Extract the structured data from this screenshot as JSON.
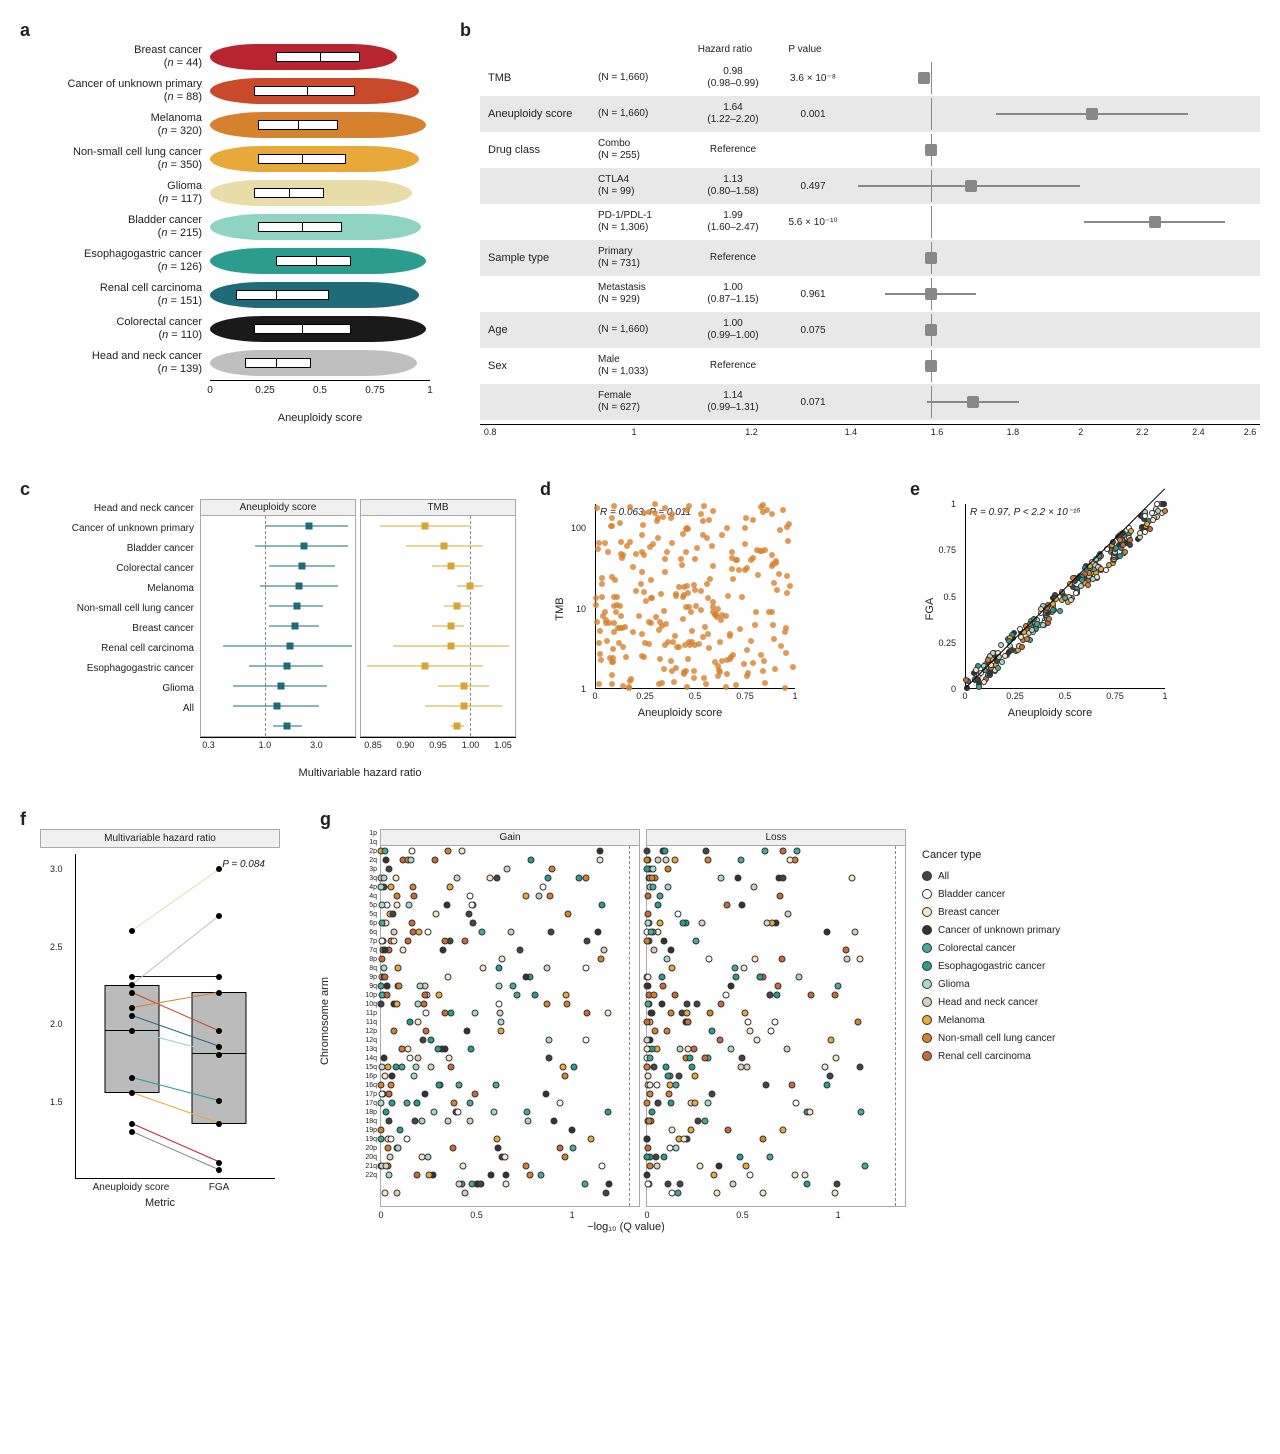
{
  "panel_a": {
    "label": "a",
    "x_axis_title": "Aneuploidy score",
    "x_ticks": [
      0,
      0.25,
      0.5,
      0.75,
      1.0
    ],
    "cancers": [
      {
        "name": "Breast cancer",
        "n": 44,
        "color": "#b82530",
        "q1": 0.3,
        "med": 0.5,
        "q3": 0.68,
        "spread": 0.85
      },
      {
        "name": "Cancer of unknown primary",
        "n": 88,
        "color": "#c94a2a",
        "q1": 0.2,
        "med": 0.44,
        "q3": 0.66,
        "spread": 0.95
      },
      {
        "name": "Melanoma",
        "n": 320,
        "color": "#d6812e",
        "q1": 0.22,
        "med": 0.4,
        "q3": 0.58,
        "spread": 0.98
      },
      {
        "name": "Non-small cell lung cancer",
        "n": 350,
        "color": "#e8a93a",
        "q1": 0.22,
        "med": 0.42,
        "q3": 0.62,
        "spread": 0.95
      },
      {
        "name": "Glioma",
        "n": 117,
        "color": "#e8dca8",
        "q1": 0.2,
        "med": 0.36,
        "q3": 0.52,
        "spread": 0.92
      },
      {
        "name": "Bladder cancer",
        "n": 215,
        "color": "#8fd4c2",
        "q1": 0.22,
        "med": 0.42,
        "q3": 0.6,
        "spread": 0.96
      },
      {
        "name": "Esophagogastric cancer",
        "n": 126,
        "color": "#2a9d8f",
        "q1": 0.3,
        "med": 0.48,
        "q3": 0.64,
        "spread": 0.98
      },
      {
        "name": "Renal cell carcinoma",
        "n": 151,
        "color": "#1f6b7a",
        "q1": 0.12,
        "med": 0.3,
        "q3": 0.54,
        "spread": 0.95
      },
      {
        "name": "Colorectal cancer",
        "n": 110,
        "color": "#1a1a1a",
        "q1": 0.2,
        "med": 0.42,
        "q3": 0.64,
        "spread": 0.98
      },
      {
        "name": "Head and neck cancer",
        "n": 139,
        "color": "#bfbfbf",
        "q1": 0.16,
        "med": 0.3,
        "q3": 0.46,
        "spread": 0.94
      }
    ]
  },
  "panel_b": {
    "label": "b",
    "header_hr": "Hazard ratio",
    "header_p": "P value",
    "x_ticks": [
      0.8,
      1,
      1.2,
      1.4,
      1.6,
      1.8,
      2,
      2.2,
      2.4,
      2.6
    ],
    "xmin_log": -0.097,
    "xmax_log": 0.415,
    "rows": [
      {
        "var": "TMB",
        "detail": "(N = 1,660)",
        "hr": "0.98",
        "ci": "(0.98–0.99)",
        "p": "3.6 × 10⁻⁸",
        "pt": 0.98,
        "lo": 0.98,
        "hi": 0.99,
        "shade": false
      },
      {
        "var": "Aneuploidy score",
        "detail": "(N = 1,660)",
        "hr": "1.64",
        "ci": "(1.22–2.20)",
        "p": "0.001",
        "pt": 1.64,
        "lo": 1.22,
        "hi": 2.2,
        "shade": true
      },
      {
        "var": "Drug class",
        "detail": "Combo\n(N = 255)",
        "hr": "Reference",
        "ci": "",
        "p": "",
        "pt": 1.0,
        "lo": 1.0,
        "hi": 1.0,
        "shade": false
      },
      {
        "var": "",
        "detail": "CTLA4\n(N = 99)",
        "hr": "1.13",
        "ci": "(0.80–1.58)",
        "p": "0.497",
        "pt": 1.13,
        "lo": 0.8,
        "hi": 1.58,
        "shade": true
      },
      {
        "var": "",
        "detail": "PD-1/PDL-1\n(N = 1,306)",
        "hr": "1.99",
        "ci": "(1.60–2.47)",
        "p": "5.6 × 10⁻¹⁰",
        "pt": 1.99,
        "lo": 1.6,
        "hi": 2.47,
        "shade": false
      },
      {
        "var": "Sample type",
        "detail": "Primary\n(N = 731)",
        "hr": "Reference",
        "ci": "",
        "p": "",
        "pt": 1.0,
        "lo": 1.0,
        "hi": 1.0,
        "shade": true
      },
      {
        "var": "",
        "detail": "Metastasis\n(N = 929)",
        "hr": "1.00",
        "ci": "(0.87–1.15)",
        "p": "0.961",
        "pt": 1.0,
        "lo": 0.87,
        "hi": 1.15,
        "shade": false
      },
      {
        "var": "Age",
        "detail": "(N = 1,660)",
        "hr": "1.00",
        "ci": "(0.99–1.00)",
        "p": "0.075",
        "pt": 1.0,
        "lo": 0.99,
        "hi": 1.0,
        "shade": true
      },
      {
        "var": "Sex",
        "detail": "Male\n(N = 1,033)",
        "hr": "Reference",
        "ci": "",
        "p": "",
        "pt": 1.0,
        "lo": 1.0,
        "hi": 1.0,
        "shade": false
      },
      {
        "var": "",
        "detail": "Female\n(N = 627)",
        "hr": "1.14",
        "ci": "(0.99–1.31)",
        "p": "0.071",
        "pt": 1.14,
        "lo": 0.99,
        "hi": 1.31,
        "shade": true
      }
    ]
  },
  "panel_c": {
    "label": "c",
    "facets": [
      "Aneuploidy score",
      "TMB"
    ],
    "x_axis_title": "Multivariable hazard ratio",
    "aneu_color": "#1f6b7a",
    "tmb_color": "#d6a537",
    "aneu_ticks": [
      "0.3",
      "1.0",
      "3.0"
    ],
    "tmb_ticks": [
      "0.85",
      "0.90",
      "0.95",
      "1.00",
      "1.05"
    ],
    "cancers": [
      {
        "name": "Head and neck cancer",
        "a_pt": 2.6,
        "a_lo": 1.0,
        "a_hi": 6.0,
        "t_pt": 0.93,
        "t_lo": 0.86,
        "t_hi": 1.0
      },
      {
        "name": "Cancer of unknown primary",
        "a_pt": 2.3,
        "a_lo": 0.8,
        "a_hi": 6.0,
        "t_pt": 0.96,
        "t_lo": 0.9,
        "t_hi": 1.02
      },
      {
        "name": "Bladder cancer",
        "a_pt": 2.2,
        "a_lo": 1.1,
        "a_hi": 4.5,
        "t_pt": 0.97,
        "t_lo": 0.94,
        "t_hi": 1.0
      },
      {
        "name": "Colorectal cancer",
        "a_pt": 2.1,
        "a_lo": 0.9,
        "a_hi": 4.8,
        "t_pt": 1.0,
        "t_lo": 0.98,
        "t_hi": 1.02
      },
      {
        "name": "Melanoma",
        "a_pt": 2.0,
        "a_lo": 1.1,
        "a_hi": 3.5,
        "t_pt": 0.98,
        "t_lo": 0.96,
        "t_hi": 1.0
      },
      {
        "name": "Non-small cell lung cancer",
        "a_pt": 1.9,
        "a_lo": 1.1,
        "a_hi": 3.2,
        "t_pt": 0.97,
        "t_lo": 0.94,
        "t_hi": 0.99
      },
      {
        "name": "Breast cancer",
        "a_pt": 1.7,
        "a_lo": 0.4,
        "a_hi": 6.5,
        "t_pt": 0.97,
        "t_lo": 0.88,
        "t_hi": 1.06
      },
      {
        "name": "Renal cell carcinoma",
        "a_pt": 1.6,
        "a_lo": 0.7,
        "a_hi": 3.5,
        "t_pt": 0.93,
        "t_lo": 0.84,
        "t_hi": 1.02
      },
      {
        "name": "Esophagogastric cancer",
        "a_pt": 1.4,
        "a_lo": 0.5,
        "a_hi": 3.8,
        "t_pt": 0.99,
        "t_lo": 0.95,
        "t_hi": 1.03
      },
      {
        "name": "Glioma",
        "a_pt": 1.3,
        "a_lo": 0.5,
        "a_hi": 3.2,
        "t_pt": 0.99,
        "t_lo": 0.93,
        "t_hi": 1.05
      },
      {
        "name": "All",
        "a_pt": 1.6,
        "a_lo": 1.2,
        "a_hi": 2.2,
        "t_pt": 0.98,
        "t_lo": 0.97,
        "t_hi": 0.99
      }
    ],
    "aneu_log_min": -0.602,
    "aneu_log_max": 0.845,
    "tmb_min": 0.83,
    "tmb_max": 1.07
  },
  "panel_d": {
    "label": "d",
    "stat": "R = 0.063, P = 0.011",
    "ylabel": "TMB",
    "xlabel": "Aneuploidy score",
    "color": "#d6812e",
    "x_ticks": [
      0,
      0.25,
      0.5,
      0.75,
      1.0
    ],
    "y_ticks": [
      1,
      10,
      100
    ],
    "n_points": 280
  },
  "panel_e": {
    "label": "e",
    "stat": "R = 0.97, P < 2.2 × 10⁻¹⁶",
    "ylabel": "FGA",
    "xlabel": "Aneuploidy score",
    "x_ticks": [
      0,
      0.25,
      0.5,
      0.75,
      1.0
    ],
    "y_ticks": [
      0,
      0.25,
      0.5,
      0.75,
      1.0
    ],
    "n_points": 260
  },
  "panel_f": {
    "label": "f",
    "title": "Multivariable hazard ratio",
    "pval": "P = 0.084",
    "xlabel": "Metric",
    "x_categories": [
      "Aneuploidy score",
      "FGA"
    ],
    "y_ticks": [
      1.5,
      2.0,
      2.5,
      3.0
    ],
    "ymin": 1.0,
    "ymax": 3.1,
    "box_aneu": {
      "q1": 1.55,
      "med": 1.95,
      "q3": 2.25
    },
    "box_fga": {
      "q1": 1.35,
      "med": 1.8,
      "q3": 2.2
    },
    "pairs": [
      {
        "a": 2.6,
        "f": 3.0,
        "color": "#e8dca8"
      },
      {
        "a": 2.3,
        "f": 2.3,
        "color": "#1a1a1a"
      },
      {
        "a": 2.25,
        "f": 2.7,
        "color": "#bfbfbf"
      },
      {
        "a": 2.2,
        "f": 1.95,
        "color": "#c94a2a"
      },
      {
        "a": 2.1,
        "f": 2.2,
        "color": "#d6812e"
      },
      {
        "a": 2.05,
        "f": 1.85,
        "color": "#1f6b7a"
      },
      {
        "a": 1.95,
        "f": 1.8,
        "color": "#8fd4c2"
      },
      {
        "a": 1.65,
        "f": 1.5,
        "color": "#2a9d8f"
      },
      {
        "a": 1.55,
        "f": 1.35,
        "color": "#e8a93a"
      },
      {
        "a": 1.35,
        "f": 1.1,
        "color": "#b82530"
      },
      {
        "a": 1.3,
        "f": 1.05,
        "color": "#888888"
      }
    ]
  },
  "panel_g": {
    "label": "g",
    "facets": [
      "Gain",
      "Loss"
    ],
    "ylabel": "Chromosome arm",
    "xlabel": "−log₁₀ (Q value)",
    "x_ticks": [
      0,
      0.5,
      1.0
    ],
    "x_max": 1.35,
    "ref_line": 1.3,
    "arms": [
      "1p",
      "1q",
      "2p",
      "2q",
      "3p",
      "3q",
      "4p",
      "4q",
      "5p",
      "5q",
      "6p",
      "6q",
      "7p",
      "7q",
      "8p",
      "8q",
      "9p",
      "9q",
      "10p",
      "10q",
      "11p",
      "11q",
      "12p",
      "12q",
      "13q",
      "14q",
      "15q",
      "16p",
      "16q",
      "17p",
      "17q",
      "18p",
      "18q",
      "19p",
      "19q",
      "20p",
      "20q",
      "21q",
      "22q"
    ]
  },
  "legend": {
    "title": "Cancer type",
    "items": [
      {
        "name": "All",
        "color": "#444444"
      },
      {
        "name": "Bladder cancer",
        "color": "#ffffff"
      },
      {
        "name": "Breast cancer",
        "color": "#f5e6c8"
      },
      {
        "name": "Cancer of unknown primary",
        "color": "#333333"
      },
      {
        "name": "Colorectal cancer",
        "color": "#4aa89a"
      },
      {
        "name": "Esophagogastric cancer",
        "color": "#2a9d8f"
      },
      {
        "name": "Glioma",
        "color": "#a8d8cc"
      },
      {
        "name": "Head and neck cancer",
        "color": "#d8d0b8"
      },
      {
        "name": "Melanoma",
        "color": "#e8a93a"
      },
      {
        "name": "Non-small cell lung cancer",
        "color": "#d6812e"
      },
      {
        "name": "Renal cell carcinoma",
        "color": "#c96a3a"
      }
    ]
  }
}
